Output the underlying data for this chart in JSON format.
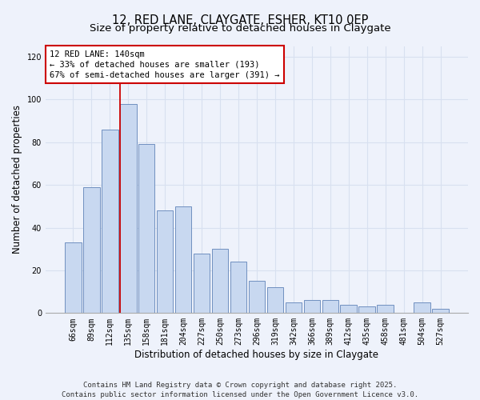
{
  "title1": "12, RED LANE, CLAYGATE, ESHER, KT10 0EP",
  "title2": "Size of property relative to detached houses in Claygate",
  "xlabel": "Distribution of detached houses by size in Claygate",
  "ylabel": "Number of detached properties",
  "categories": [
    "66sqm",
    "89sqm",
    "112sqm",
    "135sqm",
    "158sqm",
    "181sqm",
    "204sqm",
    "227sqm",
    "250sqm",
    "273sqm",
    "296sqm",
    "319sqm",
    "342sqm",
    "366sqm",
    "389sqm",
    "412sqm",
    "435sqm",
    "458sqm",
    "481sqm",
    "504sqm",
    "527sqm"
  ],
  "values": [
    33,
    59,
    86,
    98,
    79,
    48,
    50,
    28,
    30,
    24,
    15,
    12,
    5,
    6,
    6,
    4,
    3,
    4,
    0,
    5,
    2
  ],
  "bar_color": "#c8d8f0",
  "bar_edge_color": "#7090c0",
  "vline_x_index": 3,
  "vline_color": "#cc0000",
  "annotation_title": "12 RED LANE: 140sqm",
  "annotation_line1": "← 33% of detached houses are smaller (193)",
  "annotation_line2": "67% of semi-detached houses are larger (391) →",
  "annotation_box_color": "#ffffff",
  "annotation_box_edge_color": "#cc0000",
  "ylim": [
    0,
    125
  ],
  "yticks": [
    0,
    20,
    40,
    60,
    80,
    100,
    120
  ],
  "footer1": "Contains HM Land Registry data © Crown copyright and database right 2025.",
  "footer2": "Contains public sector information licensed under the Open Government Licence v3.0.",
  "bg_color": "#eef2fb",
  "grid_color": "#d8e0f0",
  "title1_fontsize": 10.5,
  "title2_fontsize": 9.5,
  "axis_label_fontsize": 8.5,
  "tick_fontsize": 7,
  "footer_fontsize": 6.5,
  "ann_fontsize": 7.5
}
